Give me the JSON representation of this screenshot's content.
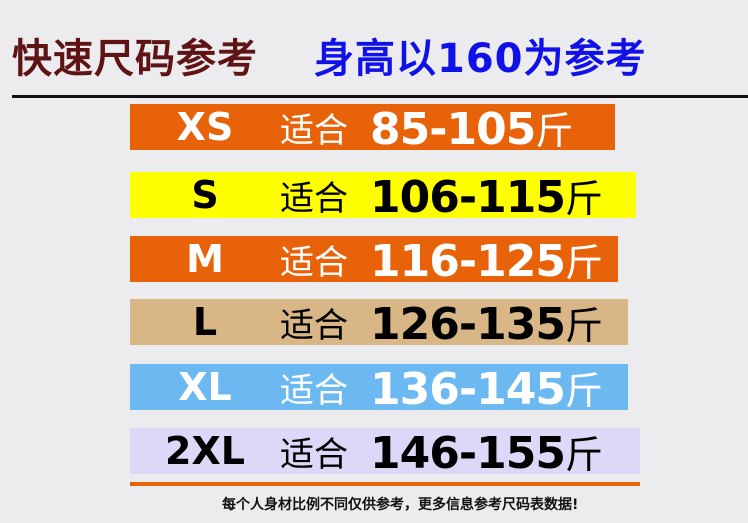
{
  "header": {
    "title": "快速尺码参考",
    "subtitle": "身高以160为参考"
  },
  "rows": [
    {
      "size": "XS",
      "fit": "适合",
      "range": "85-105",
      "unit": "斤",
      "bg": "#e8620a",
      "color": "#ffffff"
    },
    {
      "size": "S",
      "fit": "适合",
      "range": "106-115",
      "unit": "斤",
      "bg": "#ffff00",
      "color": "#000000"
    },
    {
      "size": "M",
      "fit": "适合",
      "range": "116-125",
      "unit": "斤",
      "bg": "#e8620a",
      "color": "#ffffff"
    },
    {
      "size": "L",
      "fit": "适合",
      "range": "126-135",
      "unit": "斤",
      "bg": "#d8b686",
      "color": "#000000"
    },
    {
      "size": "XL",
      "fit": "适合",
      "range": "136-145",
      "unit": "斤",
      "bg": "#6cb8f0",
      "color": "#ffffff"
    },
    {
      "size": "2XL",
      "fit": "适合",
      "range": "146-155",
      "unit": "斤",
      "bg": "#dcd8f8",
      "color": "#000000"
    }
  ],
  "footer": {
    "note": "每个人身材比例不同仅供参考，更多信息参考尺码表数据!"
  }
}
